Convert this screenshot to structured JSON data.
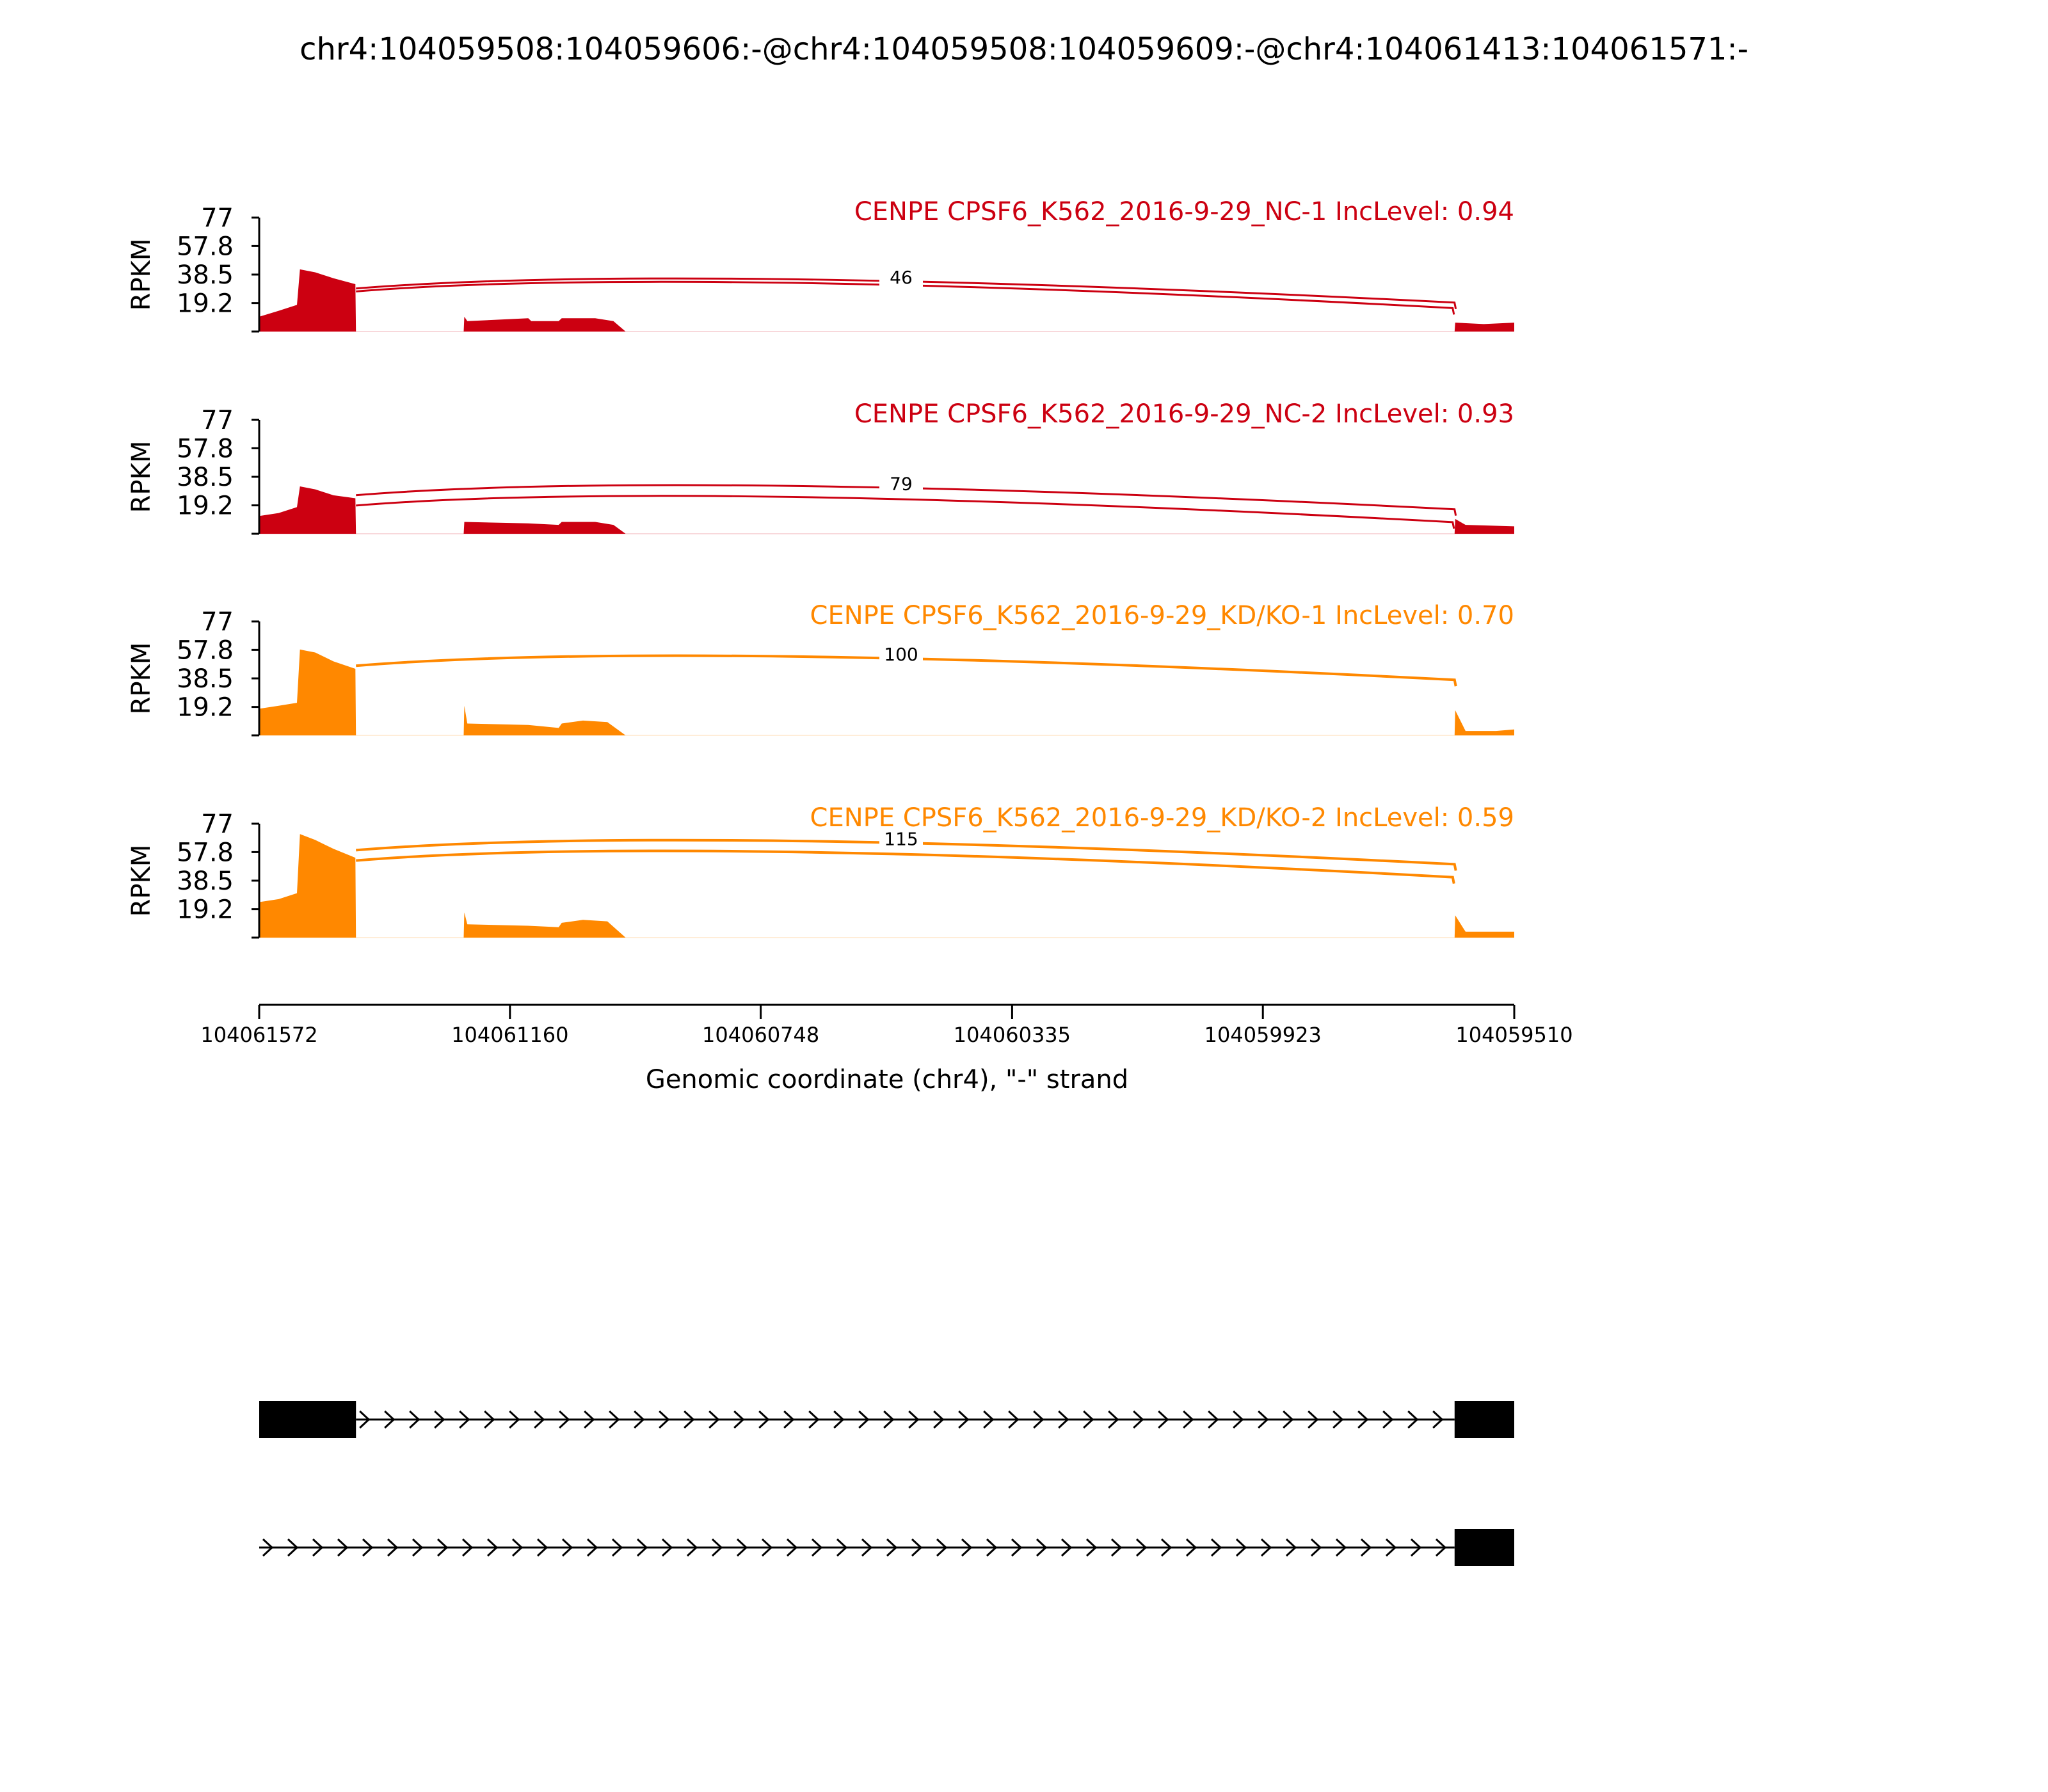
{
  "title": "chr4:104059508:104059606:-@chr4:104059508:104059609:-@chr4:104061413:104061571:-",
  "chart_data": {
    "type": "area",
    "title": "chr4:104059508:104059606:-@chr4:104059508:104059609:-@chr4:104061413:104061571:-",
    "xlabel": "Genomic coordinate (chr4), \"-\" strand",
    "ylabel": "RPKM",
    "xlim": [
      104061572,
      104059510
    ],
    "ylim": [
      0,
      77
    ],
    "x_ticks": [
      {
        "value": 104061572,
        "label": "104061572"
      },
      {
        "value": 104061160,
        "label": "104061160"
      },
      {
        "value": 104060748,
        "label": "104060748"
      },
      {
        "value": 104060335,
        "label": "104060335"
      },
      {
        "value": 104059923,
        "label": "104059923"
      },
      {
        "value": 104059510,
        "label": "104059510"
      }
    ],
    "y_ticks": [
      {
        "value": 77,
        "label": "77"
      },
      {
        "value": 57.8,
        "label": "57.8"
      },
      {
        "value": 38.5,
        "label": "38.5"
      },
      {
        "value": 19.2,
        "label": "19.2"
      }
    ],
    "colors": {
      "NC": "#cc0011",
      "KD": "#ff8800"
    },
    "series": [
      {
        "name": "CENPE CPSF6_K562_2016-9-29_NC-1 IncLevel: 0.94",
        "color": "#cc0011",
        "coverage": [
          [
            104061572,
            0
          ],
          [
            104061572,
            10
          ],
          [
            104061540,
            14
          ],
          [
            104061510,
            18
          ],
          [
            104061505,
            42
          ],
          [
            104061480,
            40
          ],
          [
            104061450,
            36
          ],
          [
            104061414,
            32
          ],
          [
            104061413,
            0
          ],
          [
            104061236,
            0
          ],
          [
            104061235,
            10
          ],
          [
            104061230,
            7
          ],
          [
            104061130,
            9
          ],
          [
            104061125,
            7
          ],
          [
            104061080,
            7
          ],
          [
            104061075,
            9
          ],
          [
            104061020,
            9
          ],
          [
            104060990,
            7
          ],
          [
            104060970,
            0
          ],
          [
            104059608,
            0
          ],
          [
            104059607,
            6
          ],
          [
            104059560,
            5
          ],
          [
            104059510,
            6
          ],
          [
            104059510,
            0
          ]
        ],
        "junctions": [
          {
            "start": 104061413,
            "end": 104059606,
            "count": 46,
            "level": 36
          },
          {
            "start": 104061413,
            "end": 104059609,
            "count": 46,
            "level": 34
          }
        ],
        "junction_label": "46"
      },
      {
        "name": "CENPE CPSF6_K562_2016-9-29_NC-2 IncLevel: 0.93",
        "color": "#cc0011",
        "coverage": [
          [
            104061572,
            0
          ],
          [
            104061572,
            12
          ],
          [
            104061540,
            14
          ],
          [
            104061510,
            18
          ],
          [
            104061505,
            32
          ],
          [
            104061480,
            30
          ],
          [
            104061450,
            26
          ],
          [
            104061414,
            24
          ],
          [
            104061413,
            0
          ],
          [
            104061236,
            0
          ],
          [
            104061235,
            8
          ],
          [
            104061130,
            7
          ],
          [
            104061080,
            6
          ],
          [
            104061075,
            8
          ],
          [
            104061020,
            8
          ],
          [
            104060990,
            6
          ],
          [
            104060970,
            0
          ],
          [
            104059608,
            0
          ],
          [
            104059607,
            10
          ],
          [
            104059590,
            6
          ],
          [
            104059510,
            5
          ],
          [
            104059510,
            0
          ]
        ],
        "junctions": [
          {
            "start": 104061413,
            "end": 104059606,
            "count": 79,
            "level": 33
          },
          {
            "start": 104061413,
            "end": 104059609,
            "count": 79,
            "level": 26
          }
        ],
        "junction_label": "79"
      },
      {
        "name": "CENPE CPSF6_K562_2016-9-29_KD/KO-1 IncLevel: 0.70",
        "color": "#ff8800",
        "coverage": [
          [
            104061572,
            0
          ],
          [
            104061572,
            18
          ],
          [
            104061540,
            20
          ],
          [
            104061510,
            22
          ],
          [
            104061505,
            58
          ],
          [
            104061480,
            56
          ],
          [
            104061450,
            50
          ],
          [
            104061414,
            45
          ],
          [
            104061413,
            0
          ],
          [
            104061236,
            0
          ],
          [
            104061235,
            20
          ],
          [
            104061230,
            8
          ],
          [
            104061130,
            7
          ],
          [
            104061080,
            5
          ],
          [
            104061075,
            8
          ],
          [
            104061040,
            10
          ],
          [
            104061000,
            9
          ],
          [
            104060970,
            0
          ],
          [
            104059608,
            0
          ],
          [
            104059607,
            17
          ],
          [
            104059590,
            3
          ],
          [
            104059540,
            3
          ],
          [
            104059510,
            4
          ],
          [
            104059510,
            0
          ]
        ],
        "junctions": [
          {
            "start": 104061413,
            "end": 104059606,
            "count": 100,
            "level": 54
          }
        ],
        "junction_label": "100"
      },
      {
        "name": "CENPE CPSF6_K562_2016-9-29_KD/KO-2 IncLevel: 0.59",
        "color": "#ff8800",
        "coverage": [
          [
            104061572,
            0
          ],
          [
            104061572,
            24
          ],
          [
            104061540,
            26
          ],
          [
            104061510,
            30
          ],
          [
            104061505,
            70
          ],
          [
            104061480,
            66
          ],
          [
            104061450,
            60
          ],
          [
            104061414,
            54
          ],
          [
            104061413,
            0
          ],
          [
            104061236,
            0
          ],
          [
            104061235,
            17
          ],
          [
            104061230,
            9
          ],
          [
            104061130,
            8
          ],
          [
            104061080,
            7
          ],
          [
            104061075,
            10
          ],
          [
            104061040,
            12
          ],
          [
            104061000,
            11
          ],
          [
            104060970,
            0
          ],
          [
            104059608,
            0
          ],
          [
            104059607,
            15
          ],
          [
            104059590,
            4
          ],
          [
            104059540,
            4
          ],
          [
            104059510,
            4
          ],
          [
            104059510,
            0
          ]
        ],
        "junctions": [
          {
            "start": 104061413,
            "end": 104059606,
            "count": 115,
            "level": 66
          },
          {
            "start": 104061413,
            "end": 104059609,
            "count": 115,
            "level": 59
          }
        ],
        "junction_label": "115"
      }
    ],
    "gene_models": [
      {
        "exons": [
          [
            104061572,
            104061413
          ],
          [
            104059608,
            104059510
          ]
        ],
        "intron": [
          104061413,
          104059608
        ]
      },
      {
        "exons": [
          [
            104059608,
            104059510
          ]
        ],
        "intron": [
          104061572,
          104059608
        ]
      }
    ]
  }
}
